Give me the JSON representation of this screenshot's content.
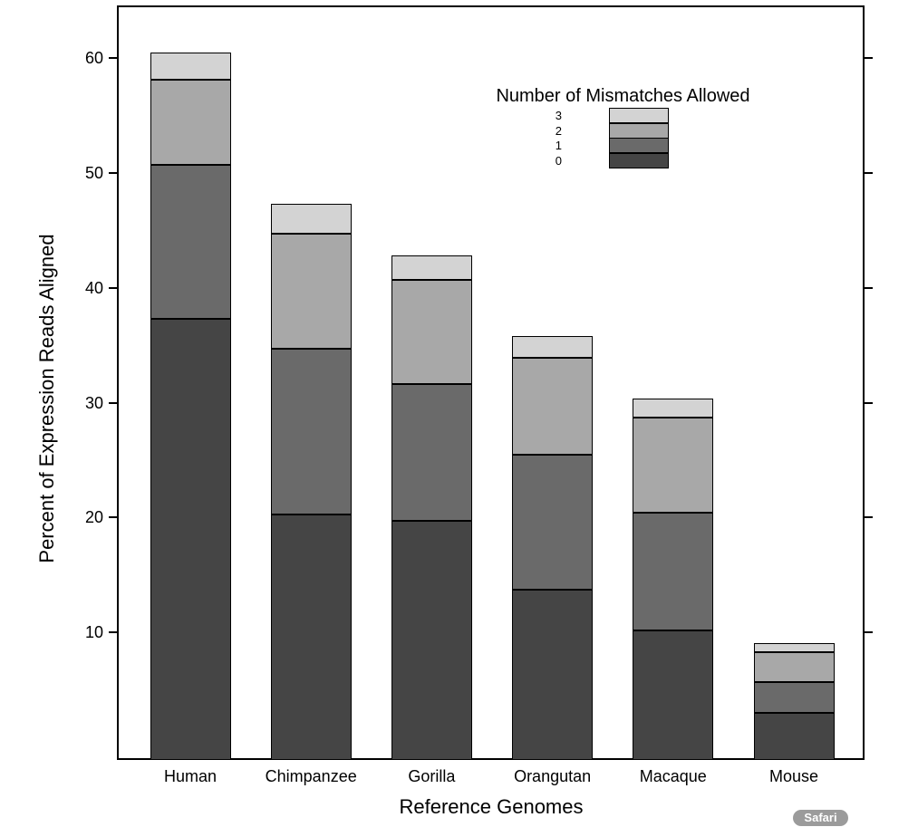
{
  "browser_badge": {
    "label": "Safari",
    "background_color": "#9b9b9b",
    "text_color": "#ffffff"
  },
  "chart_data": {
    "type": "bar",
    "stacked": true,
    "title": "",
    "xlabel": "Reference Genomes",
    "ylabel": "Percent of Expression Reads Aligned",
    "categories": [
      "Human",
      "Chimpanzee",
      "Gorilla",
      "Orangutan",
      "Macaque",
      "Mouse"
    ],
    "series": [
      {
        "name": "0",
        "color": "#454545",
        "values": [
          37.3,
          20.3,
          19.7,
          13.7,
          10.2,
          3.0
        ]
      },
      {
        "name": "1",
        "color": "#6a6a6a",
        "values": [
          13.4,
          14.4,
          11.9,
          11.8,
          10.2,
          2.7
        ]
      },
      {
        "name": "2",
        "color": "#a8a8a8",
        "values": [
          7.4,
          10.0,
          9.1,
          8.4,
          8.3,
          2.6
        ]
      },
      {
        "name": "3",
        "color": "#d3d3d3",
        "values": [
          2.4,
          2.6,
          2.1,
          1.9,
          1.7,
          0.8
        ]
      }
    ],
    "stack_totals": [
      60.5,
      47.3,
      42.8,
      35.8,
      30.4,
      9.1
    ],
    "legend": {
      "title": "Number of Mismatches Allowed",
      "entries": [
        "3",
        "2",
        "1",
        "0"
      ],
      "position": "upper-right"
    },
    "yticks": [
      10,
      20,
      30,
      40,
      50,
      60
    ],
    "ylim": [
      -1.1,
      64.6
    ],
    "grid": false,
    "frame": "full-box",
    "tick_sides": "left-labeled-right-unlabeled"
  }
}
